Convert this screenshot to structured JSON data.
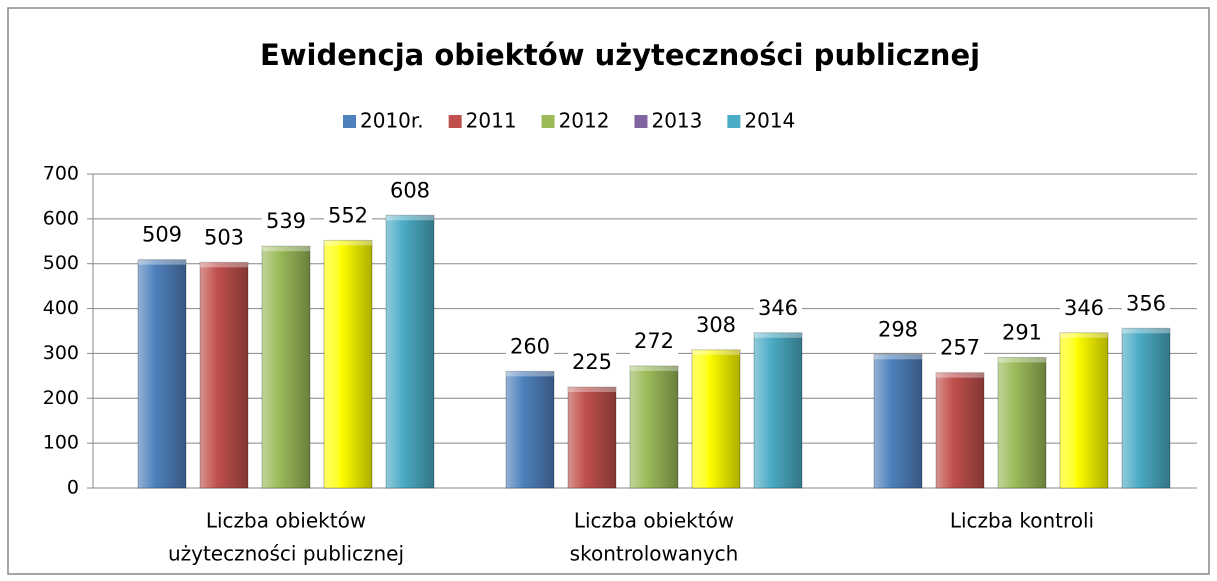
{
  "chart_data": {
    "type": "bar",
    "title": "Ewidencja obiektów użyteczności publicznej",
    "categories": [
      [
        "Liczba obiektów",
        "użyteczności publicznej"
      ],
      [
        "Liczba obiektów",
        "skontrolowanych"
      ],
      [
        "Liczba kontroli"
      ]
    ],
    "series": [
      {
        "name": "2010r.",
        "color": "#4f81bd",
        "values": [
          509,
          260,
          298
        ]
      },
      {
        "name": "2011",
        "color": "#c0504d",
        "values": [
          503,
          225,
          257
        ]
      },
      {
        "name": "2012",
        "color": "#9bbb59",
        "values": [
          539,
          272,
          291
        ]
      },
      {
        "name": "2013",
        "color": "#ffff00",
        "legend_color": "#8064a2",
        "values": [
          552,
          308,
          346
        ]
      },
      {
        "name": "2014",
        "color": "#4bacc6",
        "values": [
          608,
          346,
          356
        ]
      }
    ],
    "ylim": [
      0,
      700
    ],
    "yticks": [
      0,
      100,
      200,
      300,
      400,
      500,
      600,
      700
    ],
    "grid": true,
    "legend": "top"
  }
}
